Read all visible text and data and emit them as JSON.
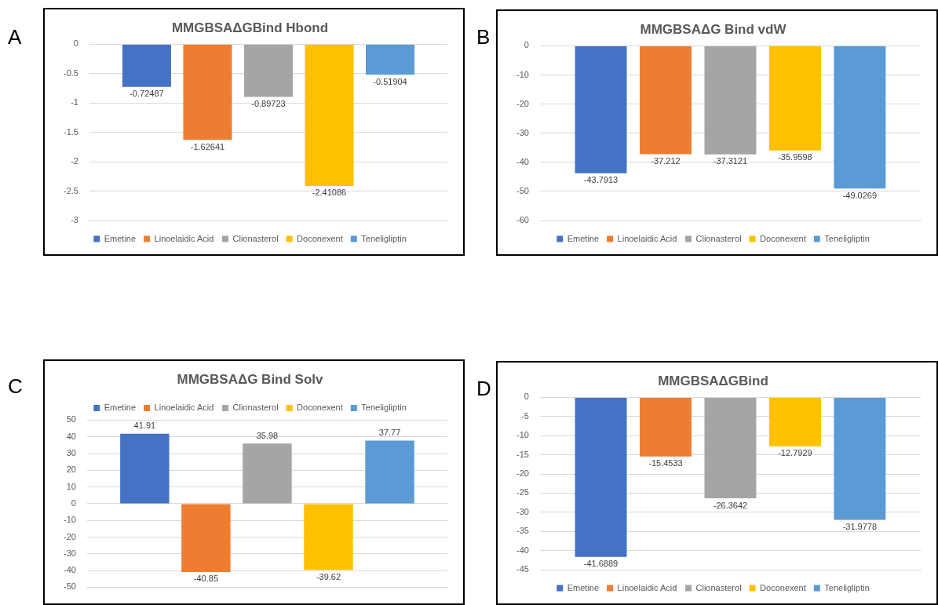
{
  "chart_data": [
    {
      "type": "bar",
      "title": "MMGBSAΔGBind Hbond",
      "annotations": [
        "A"
      ],
      "categories": [
        null
      ],
      "ylim": [
        -3,
        0
      ],
      "yticks": [
        0,
        -0.5,
        -1,
        -1.5,
        -2,
        -2.5,
        -3
      ],
      "grid": "y",
      "legend": "bottom",
      "data_labels": true,
      "series": [
        {
          "name": "Emetine",
          "color": "#4472c4",
          "values": [
            -0.72487
          ]
        },
        {
          "name": "Linoelaidic Acid",
          "color": "#ed7d31",
          "values": [
            -1.62641
          ]
        },
        {
          "name": "Clionasterol",
          "color": "#a5a5a5",
          "values": [
            -0.89723
          ]
        },
        {
          "name": "Doconexent",
          "color": "#ffc000",
          "values": [
            -2.41086
          ]
        },
        {
          "name": "Teneligliptin",
          "color": "#5b9bd5",
          "values": [
            -0.51904
          ]
        }
      ]
    },
    {
      "type": "bar",
      "title": "MMGBSAΔG Bind vdW",
      "annotations": [
        "B"
      ],
      "categories": [
        null
      ],
      "ylim": [
        -60,
        0
      ],
      "yticks": [
        0,
        -10,
        -20,
        -30,
        -40,
        -50,
        -60
      ],
      "grid": "y",
      "legend": "bottom",
      "data_labels": true,
      "series": [
        {
          "name": "Emetine",
          "color": "#4472c4",
          "values": [
            -43.7913
          ]
        },
        {
          "name": "Linoelaidic Acid",
          "color": "#ed7d31",
          "values": [
            -37.212
          ]
        },
        {
          "name": "Clionasterol",
          "color": "#a5a5a5",
          "values": [
            -37.3121
          ]
        },
        {
          "name": "Doconexent",
          "color": "#ffc000",
          "values": [
            -35.9598
          ]
        },
        {
          "name": "Teneligliptin",
          "color": "#5b9bd5",
          "values": [
            -49.0269
          ]
        }
      ]
    },
    {
      "type": "bar",
      "title": "MMGBSAΔG Bind Solv",
      "annotations": [
        "C"
      ],
      "categories": [
        null
      ],
      "ylim": [
        -50,
        50
      ],
      "yticks": [
        50,
        40,
        30,
        20,
        10,
        0,
        -10,
        -20,
        -30,
        -40,
        -50
      ],
      "grid": "y",
      "legend": "top",
      "data_labels": true,
      "series": [
        {
          "name": "Emetine",
          "color": "#4472c4",
          "values": [
            41.91
          ]
        },
        {
          "name": "Linoelaidic Acid",
          "color": "#ed7d31",
          "values": [
            -40.85
          ]
        },
        {
          "name": "Clionasterol",
          "color": "#a5a5a5",
          "values": [
            35.98
          ]
        },
        {
          "name": "Doconexent",
          "color": "#ffc000",
          "values": [
            -39.62
          ]
        },
        {
          "name": "Teneligliptin",
          "color": "#5b9bd5",
          "values": [
            37.77
          ]
        }
      ]
    },
    {
      "type": "bar",
      "title": "MMGBSAΔGBind",
      "annotations": [
        "D"
      ],
      "categories": [
        null
      ],
      "ylim": [
        -45,
        0
      ],
      "yticks": [
        0,
        -5,
        -10,
        -15,
        -20,
        -25,
        -30,
        -35,
        -40,
        -45
      ],
      "grid": "y",
      "legend": "bottom",
      "data_labels": true,
      "series": [
        {
          "name": "Emetine",
          "color": "#4472c4",
          "values": [
            -41.6889
          ]
        },
        {
          "name": "Linoelaidic Acid",
          "color": "#ed7d31",
          "values": [
            -15.4533
          ]
        },
        {
          "name": "Clionasterol",
          "color": "#a5a5a5",
          "values": [
            -26.3642
          ]
        },
        {
          "name": "Doconexent",
          "color": "#ffc000",
          "values": [
            -12.7929
          ]
        },
        {
          "name": "Teneligliptin",
          "color": "#5b9bd5",
          "values": [
            -31.9778
          ]
        }
      ]
    }
  ]
}
